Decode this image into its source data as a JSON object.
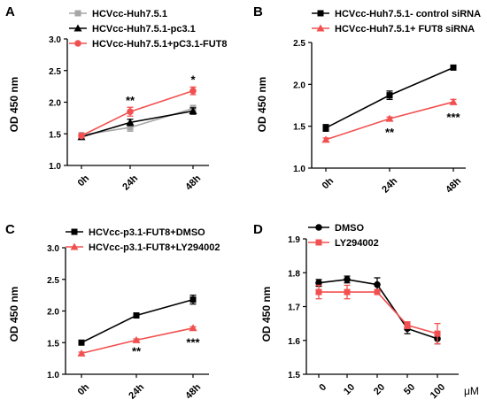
{
  "colors": {
    "gray": "#a6a6a6",
    "black": "#000000",
    "red": "#f25050"
  },
  "chart_data": [
    {
      "panel": "A",
      "type": "line",
      "ylabel": "OD 450 nm",
      "ylim": [
        1.0,
        3.0
      ],
      "yticks": [
        "1.0",
        "1.5",
        "2.0",
        "2.5",
        "3.0"
      ],
      "categories": [
        "0h",
        "24h",
        "48h"
      ],
      "legend_position": "top-left",
      "series": [
        {
          "name": "HCVcc-Huh7.5.1",
          "color": "#a6a6a6",
          "marker": "square",
          "values": [
            1.48,
            1.6,
            1.9
          ],
          "errors": [
            0.03,
            0.06,
            0.05
          ]
        },
        {
          "name": "HCVcc-Huh7.5.1-pc3.1",
          "color": "#000000",
          "marker": "triangle",
          "values": [
            1.45,
            1.68,
            1.86
          ],
          "errors": [
            0.03,
            0.05,
            0.05
          ]
        },
        {
          "name": "HCVcc-Huh7.5.1+pC3.1-FUT8",
          "color": "#f25050",
          "marker": "circle",
          "values": [
            1.47,
            1.85,
            2.18
          ],
          "errors": [
            0.03,
            0.07,
            0.06
          ]
        }
      ],
      "annotations": [
        {
          "category": "24h",
          "value": 2.02,
          "text": "**"
        },
        {
          "category": "48h",
          "value": 2.35,
          "text": "*"
        }
      ]
    },
    {
      "panel": "B",
      "type": "line",
      "ylabel": "OD 450 nm",
      "ylim": [
        1.0,
        2.5
      ],
      "yticks": [
        "1.0",
        "1.5",
        "2.0",
        "2.5"
      ],
      "categories": [
        "0h",
        "24h",
        "48h"
      ],
      "legend_position": "top-left",
      "series": [
        {
          "name": "HCVcc-Huh7.5.1- control siRNA",
          "color": "#000000",
          "marker": "square",
          "values": [
            1.48,
            1.87,
            2.2
          ],
          "errors": [
            0.04,
            0.05,
            0.02
          ]
        },
        {
          "name": "HCVcc-Huh7.5.1+ FUT8 siRNA",
          "color": "#f25050",
          "marker": "triangle",
          "values": [
            1.34,
            1.59,
            1.79
          ],
          "errors": [
            0.02,
            0.02,
            0.03
          ]
        }
      ],
      "annotations": [
        {
          "category": "24h",
          "value": 1.42,
          "text": "**"
        },
        {
          "category": "48h",
          "value": 1.6,
          "text": "***"
        }
      ]
    },
    {
      "panel": "C",
      "type": "line",
      "ylabel": "OD 450 nm",
      "ylim": [
        1.0,
        3.0
      ],
      "yticks": [
        "1.0",
        "1.5",
        "2.0",
        "2.5",
        "3.0"
      ],
      "categories": [
        "0h",
        "24h",
        "48h"
      ],
      "legend_position": "top-left",
      "series": [
        {
          "name": "HCVcc-p3.1-FUT8+DMSO",
          "color": "#000000",
          "marker": "square",
          "values": [
            1.5,
            1.93,
            2.18
          ],
          "errors": [
            0.02,
            0.02,
            0.07
          ]
        },
        {
          "name": "HCVcc-p3.1-FUT8+LY294002",
          "color": "#f25050",
          "marker": "triangle",
          "values": [
            1.33,
            1.54,
            1.73
          ],
          "errors": [
            0.02,
            0.02,
            0.02
          ]
        }
      ],
      "annotations": [
        {
          "category": "24h",
          "value": 1.36,
          "text": "**"
        },
        {
          "category": "48h",
          "value": 1.5,
          "text": "***"
        }
      ]
    },
    {
      "panel": "D",
      "type": "line",
      "ylabel": "OD 450 nm",
      "ylim": [
        1.5,
        1.9
      ],
      "yticks": [
        "1.5",
        "1.6",
        "1.7",
        "1.8",
        "1.9"
      ],
      "categories": [
        "0",
        "10",
        "20",
        "50",
        "100"
      ],
      "x_unit": "μM",
      "legend_position": "top-left",
      "series": [
        {
          "name": "DMSO",
          "color": "#000000",
          "marker": "circle",
          "values": [
            1.77,
            1.78,
            1.765,
            1.635,
            1.605
          ],
          "errors": [
            0.01,
            0.01,
            0.02,
            0.015,
            0.015
          ]
        },
        {
          "name": "LY294002",
          "color": "#f25050",
          "marker": "square",
          "values": [
            1.743,
            1.743,
            1.743,
            1.645,
            1.62
          ],
          "errors": [
            0.02,
            0.02,
            0.005,
            0.01,
            0.03
          ]
        }
      ]
    }
  ]
}
